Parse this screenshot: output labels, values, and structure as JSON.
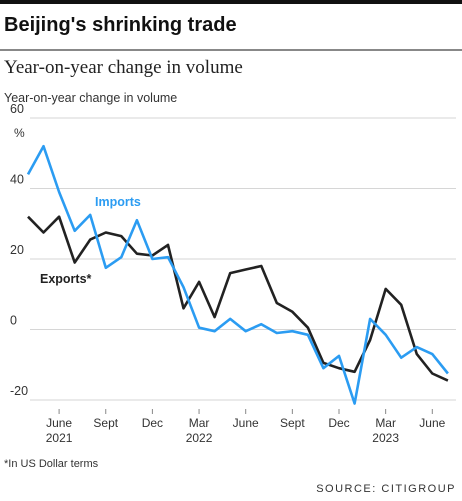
{
  "chart_data": {
    "type": "line",
    "title": "Beijing's shrinking trade",
    "subtitle": "Year-on-year change in volume",
    "y_label": "Year-on-year change in volume",
    "y_unit": "%",
    "categories": [
      null,
      null,
      "June 2021",
      null,
      null,
      "Sept",
      null,
      null,
      "Dec",
      null,
      null,
      "Mar 2022",
      null,
      null,
      "June",
      null,
      null,
      "Sept",
      null,
      null,
      "Dec",
      null,
      null,
      "Mar 2023",
      null,
      null,
      "June",
      null
    ],
    "series": [
      {
        "name": "Imports",
        "color": "#2b9cf2",
        "values": [
          44,
          52,
          39,
          28,
          32.5,
          17.5,
          20.5,
          31,
          20,
          20.5,
          12,
          0.5,
          -0.5,
          3,
          -0.5,
          1.5,
          -1,
          -0.5,
          -1.5,
          -11,
          -7.5,
          -21,
          3,
          -1.5,
          -8,
          -5,
          -7,
          -12.5
        ]
      },
      {
        "name": "Exports*",
        "color": "#222222",
        "values": [
          32,
          27.5,
          32,
          19,
          25.5,
          27.5,
          26.5,
          21.5,
          21,
          24,
          6,
          13.5,
          3.5,
          16,
          17,
          18,
          7.5,
          5,
          0.5,
          -9.5,
          -11,
          -12,
          -3,
          11.5,
          7,
          -7,
          -12.5,
          -14.5
        ]
      }
    ],
    "ylim": [
      -22,
      60
    ],
    "yticks": [
      60,
      40,
      20,
      0,
      -20
    ],
    "grid": true,
    "footnote": "*In US Dollar terms",
    "source": "SOURCE: CITIGROUP"
  }
}
